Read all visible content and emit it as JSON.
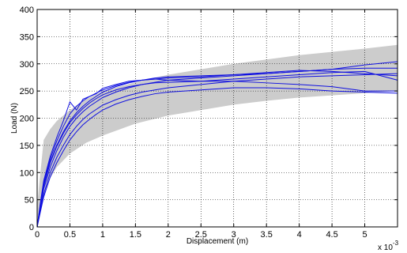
{
  "chart_data": {
    "type": "line",
    "xlabel": "Displacement (m)",
    "ylabel": "Load (N)",
    "x_multiplier_label": "x 10",
    "x_multiplier_exponent": "-3",
    "xlim": [
      0,
      5.5
    ],
    "ylim": [
      0,
      400
    ],
    "grid": "dotted",
    "x_ticks": [
      0,
      0.5,
      1,
      1.5,
      2,
      2.5,
      3,
      3.5,
      4,
      4.5,
      5
    ],
    "x_tick_labels": [
      "0",
      "0.5",
      "1",
      "1.5",
      "2",
      "2.5",
      "3",
      "3.5",
      "4",
      "4.5",
      "5"
    ],
    "y_ticks": [
      0,
      50,
      100,
      150,
      200,
      250,
      300,
      350,
      400
    ],
    "y_tick_labels": [
      "0",
      "50",
      "100",
      "150",
      "200",
      "250",
      "300",
      "350",
      "400"
    ],
    "band": {
      "color": "#cccccc",
      "x": [
        0,
        0.1,
        0.2,
        0.3,
        0.5,
        0.75,
        1.0,
        1.5,
        2.0,
        2.5,
        3.0,
        3.5,
        4.0,
        4.5,
        5.0,
        5.5
      ],
      "upper": [
        40,
        160,
        180,
        195,
        215,
        235,
        250,
        266,
        280,
        290,
        300,
        308,
        316,
        322,
        328,
        335
      ],
      "lower": [
        0,
        60,
        90,
        110,
        135,
        155,
        168,
        190,
        205,
        215,
        225,
        232,
        238,
        242,
        246,
        250
      ]
    },
    "series_color": "#1010e0",
    "series": [
      {
        "x": [
          0,
          0.05,
          0.1,
          0.2,
          0.3,
          0.4,
          0.5,
          0.6,
          0.7,
          0.8,
          0.9,
          1.0,
          1.2,
          1.4,
          1.6,
          1.8,
          2.0,
          2.5,
          3.0,
          3.5,
          4.0,
          4.5,
          5.0,
          5.5
        ],
        "y": [
          0,
          45,
          85,
          130,
          165,
          195,
          230,
          215,
          235,
          240,
          245,
          255,
          262,
          268,
          270,
          272,
          270,
          268,
          268,
          265,
          262,
          258,
          250,
          250
        ]
      },
      {
        "x": [
          0,
          0.05,
          0.1,
          0.2,
          0.3,
          0.4,
          0.5,
          0.6,
          0.7,
          0.8,
          0.9,
          1.0,
          1.2,
          1.4,
          1.6,
          1.8,
          2.0,
          2.5,
          3.0,
          3.5,
          4.0,
          4.5,
          5.0,
          5.5
        ],
        "y": [
          0,
          40,
          78,
          120,
          150,
          175,
          195,
          210,
          222,
          232,
          240,
          248,
          258,
          265,
          270,
          274,
          276,
          278,
          280,
          282,
          286,
          290,
          298,
          304
        ]
      },
      {
        "x": [
          0,
          0.05,
          0.1,
          0.2,
          0.3,
          0.4,
          0.5,
          0.6,
          0.7,
          0.8,
          0.9,
          1.0,
          1.2,
          1.4,
          1.6,
          1.8,
          2.0,
          2.5,
          3.0,
          3.5,
          4.0,
          4.5,
          5.0,
          5.5
        ],
        "y": [
          0,
          35,
          70,
          110,
          140,
          165,
          185,
          200,
          212,
          222,
          230,
          238,
          248,
          256,
          262,
          266,
          270,
          274,
          278,
          282,
          286,
          290,
          292,
          292
        ]
      },
      {
        "x": [
          0,
          0.05,
          0.1,
          0.2,
          0.3,
          0.4,
          0.5,
          0.6,
          0.7,
          0.8,
          0.9,
          1.0,
          1.2,
          1.4,
          1.6,
          1.8,
          2.0,
          2.5,
          3.0,
          3.5,
          4.0,
          4.5,
          5.0,
          5.5
        ],
        "y": [
          0,
          30,
          60,
          100,
          128,
          150,
          170,
          185,
          198,
          208,
          216,
          224,
          234,
          242,
          248,
          252,
          256,
          262,
          268,
          272,
          276,
          278,
          280,
          282
        ]
      },
      {
        "x": [
          0,
          0.05,
          0.1,
          0.2,
          0.3,
          0.4,
          0.5,
          0.6,
          0.7,
          0.8,
          0.9,
          1.0,
          1.2,
          1.4,
          1.6,
          1.8,
          2.0,
          2.5,
          3.0,
          3.5,
          4.0,
          4.5,
          5.0,
          5.5
        ],
        "y": [
          0,
          28,
          55,
          92,
          118,
          140,
          160,
          175,
          188,
          198,
          207,
          215,
          226,
          234,
          240,
          245,
          248,
          252,
          256,
          256,
          254,
          250,
          248,
          246
        ]
      },
      {
        "x": [
          0,
          0.05,
          0.1,
          0.2,
          0.3,
          0.4,
          0.5,
          0.6,
          0.7,
          0.8,
          0.9,
          1.0,
          1.2,
          1.4,
          1.6,
          1.8,
          2.0,
          2.5,
          3.0,
          3.5,
          4.0,
          4.5,
          5.0,
          5.5
        ],
        "y": [
          0,
          42,
          82,
          125,
          158,
          185,
          208,
          222,
          232,
          240,
          246,
          252,
          260,
          266,
          270,
          272,
          274,
          276,
          280,
          284,
          288,
          286,
          282,
          278
        ]
      },
      {
        "x": [
          0,
          0.05,
          0.1,
          0.2,
          0.3,
          0.4,
          0.5,
          0.6,
          0.7,
          0.8,
          0.9,
          1.0,
          1.2,
          1.4,
          1.6,
          1.8,
          2.0,
          2.5,
          3.0,
          3.5,
          4.0,
          4.5,
          5.0,
          5.5
        ],
        "y": [
          0,
          38,
          75,
          118,
          148,
          172,
          192,
          206,
          218,
          228,
          236,
          243,
          252,
          258,
          262,
          265,
          266,
          268,
          272,
          276,
          280,
          284,
          286,
          270
        ]
      }
    ]
  }
}
